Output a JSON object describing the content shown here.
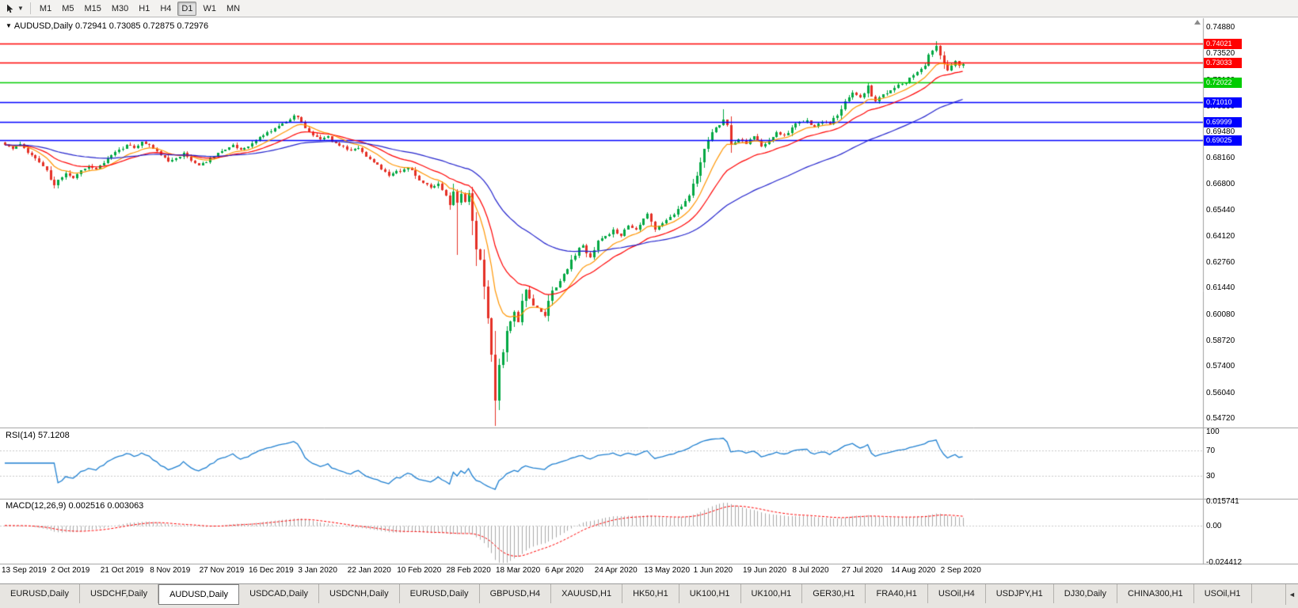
{
  "toolbar": {
    "timeframes": [
      "M1",
      "M5",
      "M15",
      "M30",
      "H1",
      "H4",
      "D1",
      "W1",
      "MN"
    ],
    "active_timeframe": "D1"
  },
  "chart_header": {
    "title": "AUDUSD,Daily",
    "ohlc_text": "0.72941 0.73085 0.72875 0.72976",
    "open": "0.72941",
    "high": "0.73085",
    "low": "0.72875",
    "close": "0.72976"
  },
  "price_axis_labels": [
    "0.74880",
    "0.73520",
    "0.72160",
    "0.70800",
    "0.69480",
    "0.68160",
    "0.66800",
    "0.65440",
    "0.64120",
    "0.62760",
    "0.61440",
    "0.60080",
    "0.58720",
    "0.57400",
    "0.56040",
    "0.54720"
  ],
  "hlines": [
    {
      "price": 0.74021,
      "label": "0.74021",
      "color": "#FF0000"
    },
    {
      "price": 0.73033,
      "label": "0.73033",
      "color": "#FF0000"
    },
    {
      "price": 0.72022,
      "label": "0.72022",
      "color": "#00CC00"
    },
    {
      "price": 0.7101,
      "label": "0.71010",
      "color": "#0000FF"
    },
    {
      "price": 0.69999,
      "label": "0.69999",
      "color": "#0000FF"
    },
    {
      "price": 0.69025,
      "label": "0.69025",
      "color": "#0000FF"
    }
  ],
  "date_axis": [
    {
      "i": 0,
      "text": "13 Sep 2019"
    },
    {
      "i": 13,
      "text": "2 Oct 2019"
    },
    {
      "i": 26,
      "text": "21 Oct 2019"
    },
    {
      "i": 39,
      "text": "8 Nov 2019"
    },
    {
      "i": 52,
      "text": "27 Nov 2019"
    },
    {
      "i": 65,
      "text": "16 Dec 2019"
    },
    {
      "i": 78,
      "text": "3 Jan 2020"
    },
    {
      "i": 91,
      "text": "22 Jan 2020"
    },
    {
      "i": 104,
      "text": "10 Feb 2020"
    },
    {
      "i": 117,
      "text": "28 Feb 2020"
    },
    {
      "i": 130,
      "text": "18 Mar 2020"
    },
    {
      "i": 143,
      "text": "6 Apr 2020"
    },
    {
      "i": 156,
      "text": "24 Apr 2020"
    },
    {
      "i": 169,
      "text": "13 May 2020"
    },
    {
      "i": 182,
      "text": "1 Jun 2020"
    },
    {
      "i": 195,
      "text": "19 Jun 2020"
    },
    {
      "i": 208,
      "text": "8 Jul 2020"
    },
    {
      "i": 221,
      "text": "27 Jul 2020"
    },
    {
      "i": 234,
      "text": "14 Aug 2020"
    },
    {
      "i": 247,
      "text": "2 Sep 2020"
    }
  ],
  "rsi_panel": {
    "name": "RSI(14)",
    "value": "57.1208",
    "period": 14,
    "axis_labels": [
      "100",
      "70",
      "30"
    ],
    "level_lines": [
      70,
      30
    ]
  },
  "macd_panel": {
    "name": "MACD(12,26,9)",
    "values": "0.002516 0.003063",
    "fast": 12,
    "slow": 26,
    "signal": 9,
    "axis": {
      "max": 0.015741,
      "max_label": "0.015741",
      "zero_label": "0.00",
      "min": -0.024412,
      "min_label": "-0.024412"
    }
  },
  "tabs": {
    "items": [
      "EURUSD,Daily",
      "USDCHF,Daily",
      "AUDUSD,Daily",
      "USDCAD,Daily",
      "USDCNH,Daily",
      "EURUSD,Daily",
      "GBPUSD,H4",
      "XAUUSD,H1",
      "HK50,H1",
      "UK100,H1",
      "UK100,H1",
      "GER30,H1",
      "FRA40,H1",
      "USOil,H4",
      "USDJPY,H1",
      "DJ30,Daily",
      "CHINA300,H1",
      "USOil,H1"
    ],
    "active_index": 2,
    "scroll_arrow": "◄"
  },
  "chart_data": {
    "type": "candlestick",
    "symbol": "AUDUSD",
    "timeframe": "Daily",
    "count": 253,
    "price_min": 0.5472,
    "price_max": 0.7488,
    "noise_seed": 11,
    "close_anchors": [
      [
        0,
        0.688
      ],
      [
        2,
        0.686
      ],
      [
        4,
        0.6885
      ],
      [
        6,
        0.684
      ],
      [
        8,
        0.681
      ],
      [
        10,
        0.677
      ],
      [
        12,
        0.67
      ],
      [
        13,
        0.667
      ],
      [
        14,
        0.67
      ],
      [
        16,
        0.6735
      ],
      [
        18,
        0.671
      ],
      [
        20,
        0.675
      ],
      [
        22,
        0.677
      ],
      [
        24,
        0.6755
      ],
      [
        26,
        0.6785
      ],
      [
        28,
        0.6825
      ],
      [
        30,
        0.6855
      ],
      [
        32,
        0.688
      ],
      [
        34,
        0.6865
      ],
      [
        36,
        0.6895
      ],
      [
        38,
        0.688
      ],
      [
        39,
        0.686
      ],
      [
        41,
        0.6825
      ],
      [
        43,
        0.6795
      ],
      [
        45,
        0.681
      ],
      [
        47,
        0.684
      ],
      [
        49,
        0.68
      ],
      [
        51,
        0.6775
      ],
      [
        52,
        0.6785
      ],
      [
        54,
        0.681
      ],
      [
        56,
        0.684
      ],
      [
        58,
        0.6855
      ],
      [
        60,
        0.688
      ],
      [
        62,
        0.6855
      ],
      [
        64,
        0.687
      ],
      [
        65,
        0.689
      ],
      [
        67,
        0.692
      ],
      [
        69,
        0.6945
      ],
      [
        71,
        0.6965
      ],
      [
        73,
        0.699
      ],
      [
        75,
        0.701
      ],
      [
        76,
        0.703
      ],
      [
        78,
        0.7
      ],
      [
        79,
        0.6965
      ],
      [
        81,
        0.693
      ],
      [
        83,
        0.691
      ],
      [
        85,
        0.6925
      ],
      [
        87,
        0.689
      ],
      [
        89,
        0.687
      ],
      [
        91,
        0.685
      ],
      [
        93,
        0.6865
      ],
      [
        95,
        0.682
      ],
      [
        97,
        0.679
      ],
      [
        99,
        0.6755
      ],
      [
        101,
        0.672
      ],
      [
        103,
        0.6745
      ],
      [
        104,
        0.674
      ],
      [
        106,
        0.676
      ],
      [
        108,
        0.672
      ],
      [
        110,
        0.6685
      ],
      [
        112,
        0.666
      ],
      [
        114,
        0.668
      ],
      [
        116,
        0.662
      ],
      [
        117,
        0.657
      ],
      [
        118,
        0.664
      ],
      [
        119,
        0.6583
      ],
      [
        120,
        0.6625
      ],
      [
        121,
        0.6585
      ],
      [
        122,
        0.663
      ],
      [
        123,
        0.649
      ],
      [
        124,
        0.634
      ],
      [
        125,
        0.629
      ],
      [
        126,
        0.615
      ],
      [
        127,
        0.5985
      ],
      [
        128,
        0.58
      ],
      [
        129,
        0.556
      ],
      [
        130,
        0.5745
      ],
      [
        131,
        0.581
      ],
      [
        132,
        0.592
      ],
      [
        133,
        0.597
      ],
      [
        134,
        0.602
      ],
      [
        135,
        0.5965
      ],
      [
        136,
        0.6075
      ],
      [
        137,
        0.6135
      ],
      [
        138,
        0.609
      ],
      [
        140,
        0.604
      ],
      [
        142,
        0.6
      ],
      [
        143,
        0.6075
      ],
      [
        144,
        0.613
      ],
      [
        146,
        0.618
      ],
      [
        148,
        0.624
      ],
      [
        150,
        0.631
      ],
      [
        152,
        0.636
      ],
      [
        154,
        0.63
      ],
      [
        156,
        0.6385
      ],
      [
        158,
        0.641
      ],
      [
        160,
        0.6445
      ],
      [
        162,
        0.641
      ],
      [
        164,
        0.6465
      ],
      [
        166,
        0.6445
      ],
      [
        168,
        0.65
      ],
      [
        169,
        0.6525
      ],
      [
        171,
        0.6445
      ],
      [
        173,
        0.6475
      ],
      [
        175,
        0.651
      ],
      [
        177,
        0.655
      ],
      [
        179,
        0.659
      ],
      [
        181,
        0.668
      ],
      [
        183,
        0.679
      ],
      [
        185,
        0.69
      ],
      [
        187,
        0.697
      ],
      [
        189,
        0.701
      ],
      [
        190,
        0.698
      ],
      [
        191,
        0.688
      ],
      [
        193,
        0.691
      ],
      [
        195,
        0.6885
      ],
      [
        197,
        0.6925
      ],
      [
        199,
        0.687
      ],
      [
        201,
        0.6905
      ],
      [
        203,
        0.6945
      ],
      [
        205,
        0.693
      ],
      [
        207,
        0.697
      ],
      [
        209,
        0.6995
      ],
      [
        211,
        0.7005
      ],
      [
        213,
        0.6975
      ],
      [
        215,
        0.7
      ],
      [
        217,
        0.6985
      ],
      [
        219,
        0.703
      ],
      [
        220,
        0.7065
      ],
      [
        221,
        0.7105
      ],
      [
        223,
        0.715
      ],
      [
        225,
        0.7125
      ],
      [
        227,
        0.7185
      ],
      [
        229,
        0.7105
      ],
      [
        231,
        0.714
      ],
      [
        233,
        0.716
      ],
      [
        234,
        0.7175
      ],
      [
        236,
        0.7195
      ],
      [
        238,
        0.7225
      ],
      [
        240,
        0.7255
      ],
      [
        242,
        0.729
      ],
      [
        244,
        0.7365
      ],
      [
        245,
        0.739
      ],
      [
        246,
        0.734
      ],
      [
        247,
        0.7298
      ],
      [
        248,
        0.7265
      ],
      [
        249,
        0.729
      ],
      [
        250,
        0.7312
      ],
      [
        251,
        0.7288
      ],
      [
        252,
        0.72976
      ]
    ],
    "wick_overrides": [
      {
        "i": 76,
        "hi": 0.704
      },
      {
        "i": 119,
        "lo": 0.6313
      },
      {
        "i": 129,
        "lo": 0.548
      },
      {
        "i": 189,
        "hi": 0.7065
      },
      {
        "i": 245,
        "hi": 0.7414
      }
    ],
    "moving_averages": [
      {
        "period": 10,
        "color": "#FF9500"
      },
      {
        "period": 21,
        "color": "#FF0000"
      },
      {
        "period": 55,
        "color": "#2222CC"
      }
    ],
    "colors": {
      "up": "#00A843",
      "down": "#E53026",
      "rsi_line": "#1E7FD0",
      "level_dotted": "#C8C8C8",
      "macd_hist": "#A8A8A8",
      "macd_signal": "#FF0000",
      "separator": "#9E9E9E"
    }
  }
}
